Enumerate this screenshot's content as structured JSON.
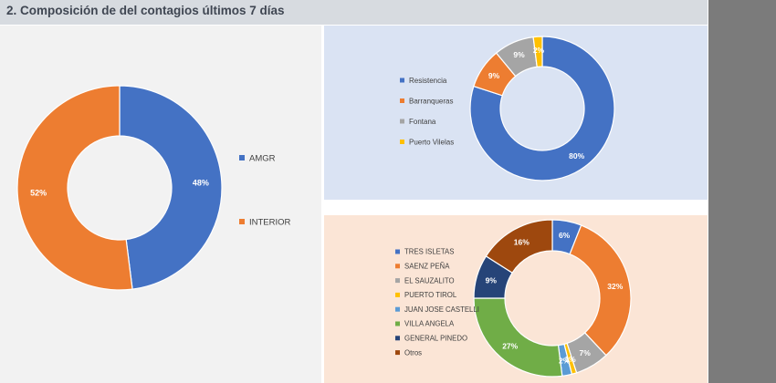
{
  "header": {
    "title": "2. Composición de del contagios últimos 7 días"
  },
  "colors": {
    "header_bg": "#d7dbe0",
    "right_bar": "#7b7b7b",
    "panel_main": "#f2f2f2",
    "panel_amgr": "#dae3f3",
    "panel_interior": "#fbe5d6"
  },
  "chart_data": [
    {
      "type": "pie",
      "style": "donut",
      "title": "",
      "legend_position": "right",
      "categories": [
        "AMGR",
        "INTERIOR"
      ],
      "values": [
        48,
        52
      ],
      "labels": [
        "48%",
        "52%"
      ],
      "colors": [
        "#4472c4",
        "#ed7d31"
      ]
    },
    {
      "type": "pie",
      "style": "donut",
      "title": "",
      "legend_position": "left",
      "categories": [
        "Resistencia",
        "Barranqueras",
        "Fontana",
        "Puerto Vilelas"
      ],
      "values": [
        80,
        9,
        9,
        2
      ],
      "labels": [
        "80%",
        "9%",
        "9%",
        "2%"
      ],
      "colors": [
        "#4472c4",
        "#ed7d31",
        "#a5a5a5",
        "#ffc000"
      ]
    },
    {
      "type": "pie",
      "style": "donut",
      "title": "",
      "legend_position": "left",
      "categories": [
        "TRES ISLETAS",
        "SAENZ PEÑA",
        "EL SAUZALITO",
        "PUERTO TIROL",
        "JUAN JOSE CASTELLI",
        "VILLA ANGELA",
        "GENERAL PINEDO",
        "Otros"
      ],
      "values": [
        6,
        32,
        7,
        1,
        2,
        27,
        9,
        16
      ],
      "labels": [
        "6%",
        "32%",
        "7%",
        "1%",
        "2%",
        "27%",
        "9%",
        "16%"
      ],
      "colors": [
        "#4472c4",
        "#ed7d31",
        "#a5a5a5",
        "#ffc000",
        "#5b9bd5",
        "#70ad47",
        "#264478",
        "#9e480e"
      ]
    }
  ]
}
